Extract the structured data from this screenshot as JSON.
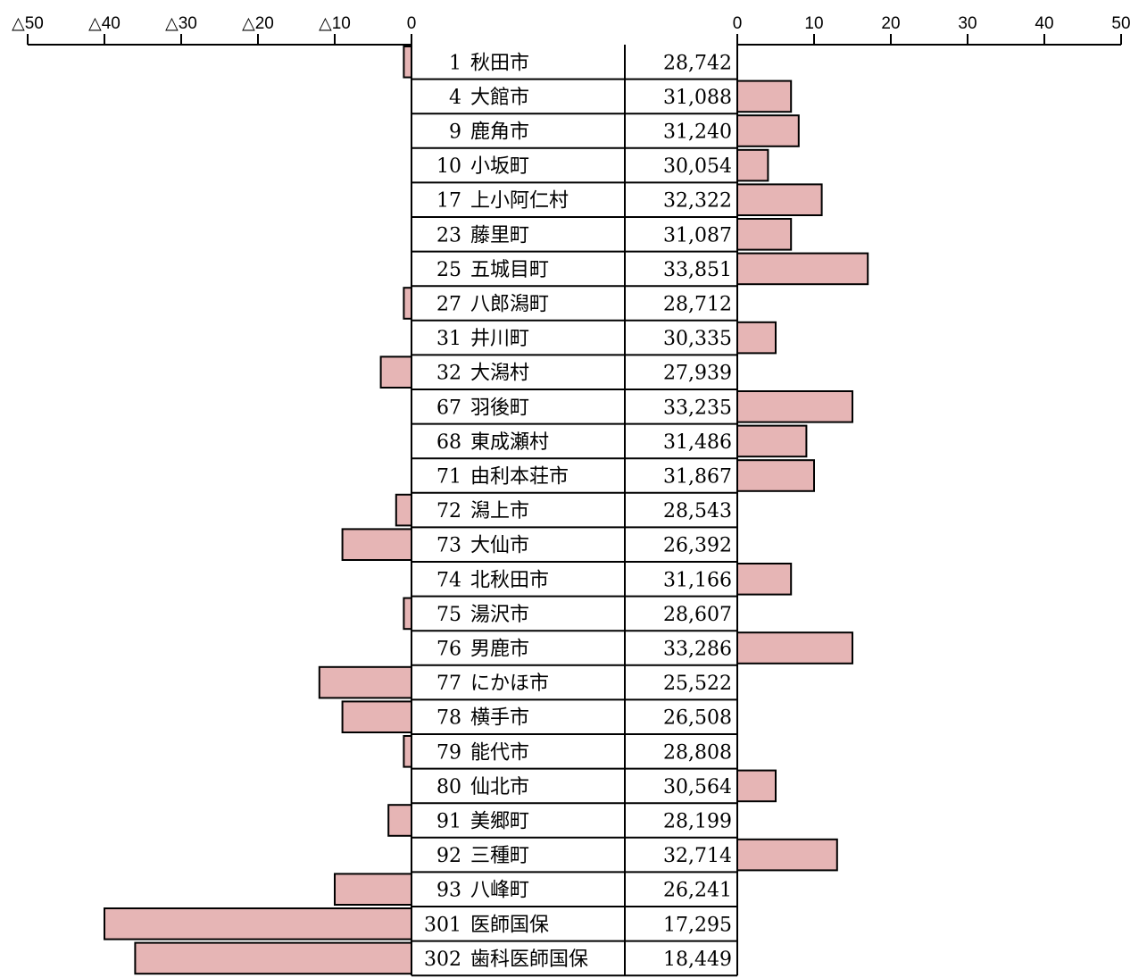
{
  "chart_data": {
    "type": "bar",
    "left_axis": {
      "range": [
        -50,
        0
      ],
      "ticks": [
        -50,
        -40,
        -30,
        -20,
        -10,
        0
      ],
      "tick_labels": [
        "△50",
        "△40",
        "△30",
        "△20",
        "△10",
        "0"
      ]
    },
    "right_axis": {
      "range": [
        0,
        50
      ],
      "ticks": [
        0,
        10,
        20,
        30,
        40,
        50
      ],
      "tick_labels": [
        "0",
        "10",
        "20",
        "30",
        "40",
        "50"
      ]
    },
    "rows": [
      {
        "code": "1",
        "name": "秋田市",
        "amount": "28,742",
        "left": -1,
        "right": 0
      },
      {
        "code": "4",
        "name": "大館市",
        "amount": "31,088",
        "left": 0,
        "right": 7
      },
      {
        "code": "9",
        "name": "鹿角市",
        "amount": "31,240",
        "left": 0,
        "right": 8
      },
      {
        "code": "10",
        "name": "小坂町",
        "amount": "30,054",
        "left": 0,
        "right": 4
      },
      {
        "code": "17",
        "name": "上小阿仁村",
        "amount": "32,322",
        "left": 0,
        "right": 11
      },
      {
        "code": "23",
        "name": "藤里町",
        "amount": "31,087",
        "left": 0,
        "right": 7
      },
      {
        "code": "25",
        "name": "五城目町",
        "amount": "33,851",
        "left": 0,
        "right": 17
      },
      {
        "code": "27",
        "name": "八郎潟町",
        "amount": "28,712",
        "left": -1,
        "right": 0
      },
      {
        "code": "31",
        "name": "井川町",
        "amount": "30,335",
        "left": 0,
        "right": 5
      },
      {
        "code": "32",
        "name": "大潟村",
        "amount": "27,939",
        "left": -4,
        "right": 0
      },
      {
        "code": "67",
        "name": "羽後町",
        "amount": "33,235",
        "left": 0,
        "right": 15
      },
      {
        "code": "68",
        "name": "東成瀬村",
        "amount": "31,486",
        "left": 0,
        "right": 9
      },
      {
        "code": "71",
        "name": "由利本荘市",
        "amount": "31,867",
        "left": 0,
        "right": 10
      },
      {
        "code": "72",
        "name": "潟上市",
        "amount": "28,543",
        "left": -2,
        "right": 0
      },
      {
        "code": "73",
        "name": "大仙市",
        "amount": "26,392",
        "left": -9,
        "right": 0
      },
      {
        "code": "74",
        "name": "北秋田市",
        "amount": "31,166",
        "left": 0,
        "right": 7
      },
      {
        "code": "75",
        "name": "湯沢市",
        "amount": "28,607",
        "left": -1,
        "right": 0
      },
      {
        "code": "76",
        "name": "男鹿市",
        "amount": "33,286",
        "left": 0,
        "right": 15
      },
      {
        "code": "77",
        "name": "にかほ市",
        "amount": "25,522",
        "left": -12,
        "right": 0
      },
      {
        "code": "78",
        "name": "横手市",
        "amount": "26,508",
        "left": -9,
        "right": 0
      },
      {
        "code": "79",
        "name": "能代市",
        "amount": "28,808",
        "left": -1,
        "right": 0
      },
      {
        "code": "80",
        "name": "仙北市",
        "amount": "30,564",
        "left": 0,
        "right": 5
      },
      {
        "code": "91",
        "name": "美郷町",
        "amount": "28,199",
        "left": -3,
        "right": 0
      },
      {
        "code": "92",
        "name": "三種町",
        "amount": "32,714",
        "left": 0,
        "right": 13
      },
      {
        "code": "93",
        "name": "八峰町",
        "amount": "26,241",
        "left": -10,
        "right": 0
      },
      {
        "code": "301",
        "name": "医師国保",
        "amount": "17,295",
        "left": -40,
        "right": 0
      },
      {
        "code": "302",
        "name": "歯科医師国保",
        "amount": "18,449",
        "left": -36,
        "right": 0
      }
    ],
    "bar_color": "#e6b5b5"
  }
}
